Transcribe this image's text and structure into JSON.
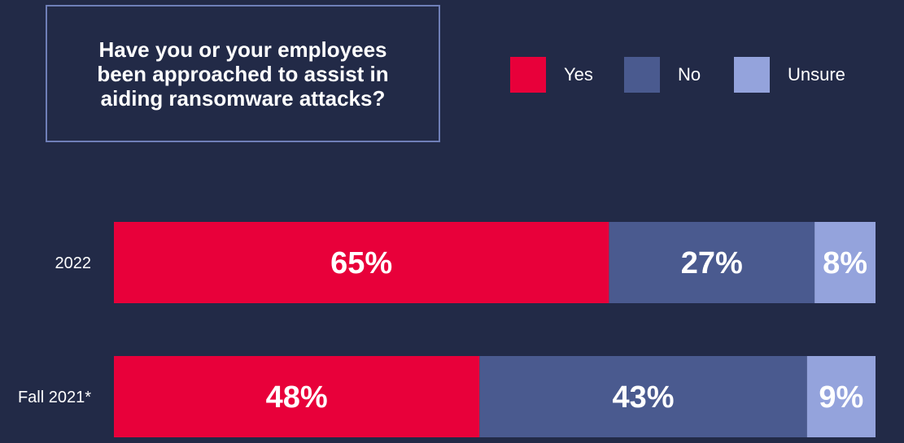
{
  "chart_data": {
    "type": "bar",
    "orientation": "horizontal-stacked",
    "title": "Have you or your employees been approached to assist in aiding ransomware attacks?",
    "categories": [
      "2022",
      "Fall 2021*"
    ],
    "series": [
      {
        "name": "Yes",
        "values": [
          65,
          48
        ],
        "color": "#e8003a"
      },
      {
        "name": "No",
        "values": [
          27,
          43
        ],
        "color": "#4a5a8f"
      },
      {
        "name": "Unsure",
        "values": [
          8,
          9
        ],
        "color": "#94a3dc"
      }
    ],
    "value_suffix": "%",
    "legend": "top-right",
    "grid": false
  }
}
